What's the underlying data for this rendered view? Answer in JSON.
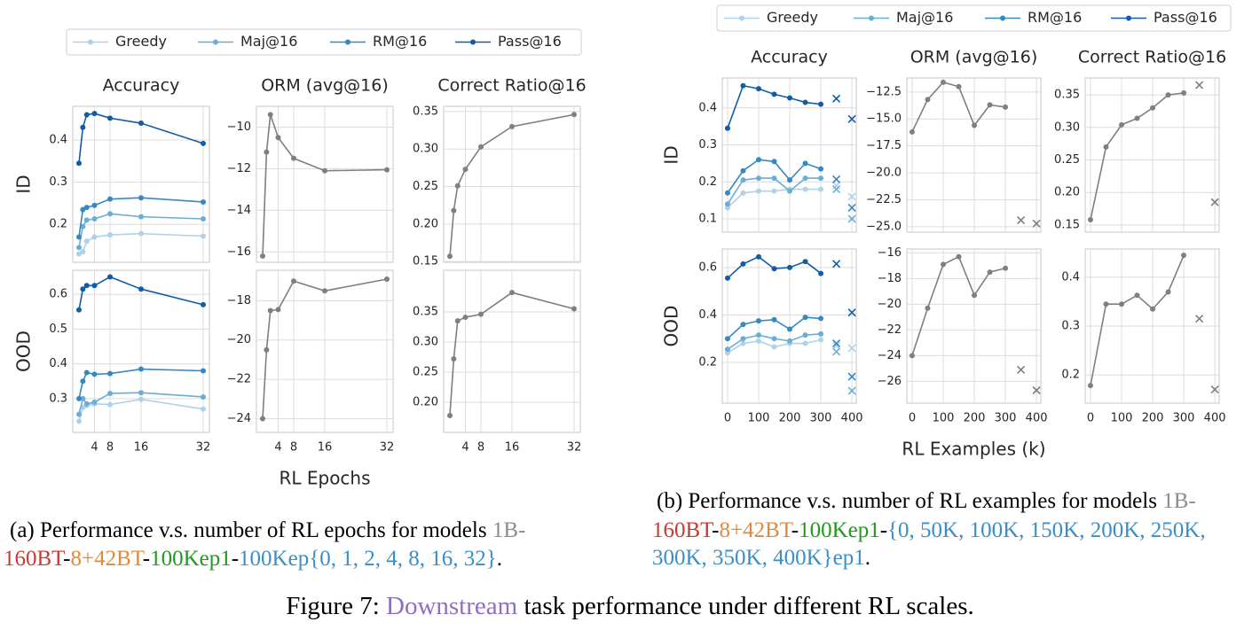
{
  "chart_data": [
    {
      "type": "line",
      "title": "Accuracy",
      "ylabel": "ID",
      "legend": "top",
      "x": [
        0,
        1,
        2,
        4,
        8,
        16,
        32
      ],
      "xlim": [
        -1.6,
        33.6
      ],
      "xticks": [
        4,
        8,
        16,
        32
      ],
      "xtick_labels": false,
      "ylim": [
        0.11,
        0.48
      ],
      "yticks": [
        0.2,
        0.3,
        0.4
      ],
      "grid": true,
      "series": [
        {
          "name": "Greedy",
          "color": "#b0d2e8",
          "values": [
            0.13,
            0.135,
            0.16,
            0.17,
            0.175,
            0.178,
            0.172
          ]
        },
        {
          "name": "Maj@16",
          "color": "#6aaed6",
          "values": [
            0.145,
            0.195,
            0.21,
            0.213,
            0.225,
            0.218,
            0.213
          ]
        },
        {
          "name": "RM@16",
          "color": "#3787c0",
          "values": [
            0.17,
            0.235,
            0.24,
            0.245,
            0.26,
            0.263,
            0.253
          ]
        },
        {
          "name": "Pass@16",
          "color": "#125ca4",
          "values": [
            0.345,
            0.43,
            0.46,
            0.463,
            0.452,
            0.44,
            0.392
          ]
        }
      ]
    },
    {
      "type": "line",
      "title": "ORM (avg@16)",
      "x": [
        0,
        1,
        2,
        4,
        8,
        16,
        32
      ],
      "xlim": [
        -1.6,
        33.6
      ],
      "xticks": [
        4,
        8,
        16,
        32
      ],
      "xtick_labels": false,
      "ylim": [
        -16.5,
        -9.0
      ],
      "yticks": [
        {
          "value": -16,
          "label": "−16"
        },
        {
          "value": -14,
          "label": "−14"
        },
        {
          "value": -12,
          "label": "−12"
        },
        {
          "value": -10,
          "label": "−10"
        }
      ],
      "grid": true,
      "series": [
        {
          "color": "#7f7f7f",
          "values": [
            -16.2,
            -11.2,
            -9.4,
            -10.5,
            -11.5,
            -12.1,
            -12.05
          ]
        }
      ]
    },
    {
      "type": "line",
      "title": "Correct Ratio@16",
      "x": [
        0,
        1,
        2,
        4,
        8,
        16,
        32
      ],
      "xlim": [
        -1.6,
        33.6
      ],
      "xticks": [
        4,
        8,
        16,
        32
      ],
      "xtick_labels": false,
      "ylim": [
        0.149,
        0.357
      ],
      "yticks": [
        0.15,
        {
          "value": 0.2,
          "label": "0.20"
        },
        0.25,
        {
          "value": 0.3,
          "label": "0.30"
        },
        0.35
      ],
      "grid": true,
      "series": [
        {
          "color": "#7f7f7f",
          "values": [
            0.157,
            0.218,
            0.251,
            0.273,
            0.303,
            0.33,
            0.346
          ]
        }
      ]
    },
    {
      "type": "line",
      "ylabel": "OOD",
      "x": [
        0,
        1,
        2,
        4,
        8,
        16,
        32
      ],
      "xlim": [
        -1.6,
        33.6
      ],
      "xticks": [
        4,
        8,
        16,
        32
      ],
      "xtick_labels": true,
      "ylim": [
        0.203,
        0.669
      ],
      "yticks": [
        0.3,
        0.4,
        0.5,
        0.6
      ],
      "grid": true,
      "series": [
        {
          "color": "#b0d2e8",
          "values": [
            0.235,
            0.275,
            0.28,
            0.285,
            0.283,
            0.298,
            0.27
          ]
        },
        {
          "color": "#6aaed6",
          "values": [
            0.255,
            0.3,
            0.285,
            0.29,
            0.315,
            0.317,
            0.305
          ]
        },
        {
          "color": "#3787c0",
          "values": [
            0.3,
            0.35,
            0.375,
            0.37,
            0.372,
            0.385,
            0.38
          ]
        },
        {
          "color": "#125ca4",
          "values": [
            0.555,
            0.615,
            0.625,
            0.625,
            0.65,
            0.615,
            0.57
          ]
        }
      ]
    },
    {
      "type": "line",
      "xlabel": "RL Epochs",
      "x": [
        0,
        1,
        2,
        4,
        8,
        16,
        32
      ],
      "xlim": [
        -1.6,
        33.6
      ],
      "xticks": [
        4,
        8,
        16,
        32
      ],
      "xtick_labels": true,
      "ylim": [
        -24.7,
        -16.45
      ],
      "yticks": [
        {
          "value": -24,
          "label": "−24"
        },
        {
          "value": -22,
          "label": "−22"
        },
        {
          "value": -20,
          "label": "−20"
        },
        {
          "value": -18,
          "label": "−18"
        }
      ],
      "grid": true,
      "series": [
        {
          "color": "#7f7f7f",
          "values": [
            -24,
            -20.5,
            -18.5,
            -18.45,
            -17.0,
            -17.5,
            -16.9
          ]
        }
      ]
    },
    {
      "type": "line",
      "x": [
        0,
        1,
        2,
        4,
        8,
        16,
        32
      ],
      "xlim": [
        -1.6,
        33.6
      ],
      "xticks": [
        4,
        8,
        16,
        32
      ],
      "xtick_labels": true,
      "ylim": [
        0.15,
        0.419
      ],
      "yticks": [
        {
          "value": 0.2,
          "label": "0.20"
        },
        0.25,
        {
          "value": 0.3,
          "label": "0.30"
        },
        0.35
      ],
      "grid": true,
      "series": [
        {
          "color": "#7f7f7f",
          "values": [
            0.178,
            0.272,
            0.335,
            0.341,
            0.346,
            0.382,
            0.355
          ]
        }
      ]
    },
    {
      "type": "line",
      "title": "Accuracy",
      "ylabel": "ID",
      "legend": "top",
      "x": [
        0,
        50,
        100,
        150,
        200,
        250,
        300
      ],
      "cross_x": [
        350,
        400
      ],
      "xlim": [
        -17,
        414
      ],
      "xticks": [
        0,
        100,
        200,
        300,
        400
      ],
      "xtick_labels": false,
      "ylim": [
        0.064,
        0.481
      ],
      "yticks": [
        0.1,
        0.2,
        0.3,
        0.4
      ],
      "grid": true,
      "series": [
        {
          "name": "Greedy",
          "color": "#b0d2e8",
          "values": [
            0.13,
            0.17,
            0.175,
            0.175,
            0.18,
            0.18,
            0.18
          ],
          "cross_values": [
            0.19,
            0.16
          ]
        },
        {
          "name": "Maj@16",
          "color": "#6aaed6",
          "values": [
            0.14,
            0.205,
            0.21,
            0.21,
            0.175,
            0.21,
            0.21
          ],
          "cross_values": [
            0.18,
            0.1
          ]
        },
        {
          "name": "RM@16",
          "color": "#3787c0",
          "values": [
            0.17,
            0.23,
            0.26,
            0.255,
            0.205,
            0.25,
            0.235
          ],
          "cross_values": [
            0.207,
            0.13
          ]
        },
        {
          "name": "Pass@16",
          "color": "#125ca4",
          "values": [
            0.345,
            0.46,
            0.452,
            0.437,
            0.427,
            0.415,
            0.41
          ],
          "cross_values": [
            0.425,
            0.37
          ]
        }
      ]
    },
    {
      "type": "line",
      "title": "ORM (avg@16)",
      "x": [
        0,
        50,
        100,
        150,
        200,
        250,
        300
      ],
      "cross_x": [
        350,
        400
      ],
      "xlim": [
        -17,
        414
      ],
      "xticks": [
        0,
        100,
        200,
        300,
        400
      ],
      "xtick_labels": false,
      "ylim": [
        -25.5,
        -11.2
      ],
      "yticks": [
        {
          "value": -25,
          "label": "−25.0"
        },
        {
          "value": -22.5,
          "label": "−22.5"
        },
        {
          "value": -20,
          "label": "−20.0"
        },
        {
          "value": -17.5,
          "label": "−17.5"
        },
        {
          "value": -15,
          "label": "−15.0"
        },
        {
          "value": -12.5,
          "label": "−12.5"
        }
      ],
      "grid": true,
      "series": [
        {
          "color": "#7f7f7f",
          "values": [
            -16.2,
            -13.2,
            -11.6,
            -12.0,
            -15.6,
            -13.7,
            -13.9
          ],
          "cross_values": [
            -24.4,
            -24.7
          ]
        }
      ]
    },
    {
      "type": "line",
      "title": "Correct Ratio@16",
      "x": [
        0,
        50,
        100,
        150,
        200,
        250,
        300
      ],
      "cross_x": [
        350,
        400
      ],
      "xlim": [
        -17,
        414
      ],
      "xticks": [
        0,
        100,
        200,
        300,
        400
      ],
      "xtick_labels": false,
      "ylim": [
        0.139,
        0.376
      ],
      "yticks": [
        0.15,
        {
          "value": 0.2,
          "label": "0.20"
        },
        0.25,
        {
          "value": 0.3,
          "label": "0.30"
        },
        0.35
      ],
      "grid": true,
      "series": [
        {
          "color": "#7f7f7f",
          "values": [
            0.158,
            0.27,
            0.304,
            0.314,
            0.33,
            0.35,
            0.353
          ],
          "cross_values": [
            0.365,
            0.185
          ]
        }
      ]
    },
    {
      "type": "line",
      "ylabel": "OOD",
      "x": [
        0,
        50,
        100,
        150,
        200,
        250,
        300
      ],
      "cross_x": [
        350,
        400
      ],
      "xlim": [
        -17,
        414
      ],
      "xticks": [
        0,
        100,
        200,
        300,
        400
      ],
      "xtick_labels": true,
      "ylim": [
        0.028,
        0.678
      ],
      "yticks": [
        0.2,
        0.4,
        0.6
      ],
      "grid": true,
      "series": [
        {
          "color": "#b0d2e8",
          "values": [
            0.24,
            0.28,
            0.29,
            0.265,
            0.28,
            0.28,
            0.295
          ],
          "cross_values": [
            0.27,
            0.26
          ]
        },
        {
          "color": "#6aaed6",
          "values": [
            0.255,
            0.3,
            0.315,
            0.3,
            0.29,
            0.315,
            0.32
          ],
          "cross_values": [
            0.245,
            0.08
          ]
        },
        {
          "color": "#3787c0",
          "values": [
            0.3,
            0.36,
            0.375,
            0.38,
            0.34,
            0.39,
            0.385
          ],
          "cross_values": [
            0.28,
            0.14
          ]
        },
        {
          "color": "#125ca4",
          "values": [
            0.555,
            0.615,
            0.645,
            0.595,
            0.6,
            0.625,
            0.575
          ],
          "cross_values": [
            0.615,
            0.41
          ]
        }
      ]
    },
    {
      "type": "line",
      "xlabel": "RL Examples (k)",
      "x": [
        0,
        50,
        100,
        150,
        200,
        250,
        300
      ],
      "cross_x": [
        350,
        400
      ],
      "xlim": [
        -17,
        414
      ],
      "xticks": [
        0,
        100,
        200,
        300,
        400
      ],
      "xtick_labels": true,
      "ylim": [
        -27.7,
        -15.7
      ],
      "yticks": [
        {
          "value": -26,
          "label": "−26"
        },
        {
          "value": -24,
          "label": "−24"
        },
        {
          "value": -22,
          "label": "−22"
        },
        {
          "value": -20,
          "label": "−20"
        },
        {
          "value": -18,
          "label": "−18"
        },
        {
          "value": -16,
          "label": "−16"
        }
      ],
      "grid": true,
      "series": [
        {
          "color": "#7f7f7f",
          "values": [
            -24,
            -20.3,
            -16.9,
            -16.3,
            -19.3,
            -17.5,
            -17.2
          ],
          "cross_values": [
            -25.1,
            -26.7
          ]
        }
      ]
    },
    {
      "type": "line",
      "x": [
        0,
        50,
        100,
        150,
        200,
        250,
        300
      ],
      "cross_x": [
        350,
        400
      ],
      "xlim": [
        -17,
        414
      ],
      "xticks": [
        0,
        100,
        200,
        300,
        400
      ],
      "xtick_labels": true,
      "ylim": [
        0.142,
        0.458
      ],
      "yticks": [
        0.2,
        0.3,
        0.4
      ],
      "grid": true,
      "series": [
        {
          "color": "#7f7f7f",
          "values": [
            0.178,
            0.345,
            0.345,
            0.363,
            0.335,
            0.37,
            0.445
          ],
          "cross_values": [
            0.315,
            0.17
          ]
        }
      ]
    }
  ],
  "caption_a": [
    [
      {
        "text": "(a) Performance v.s. number of RL epochs for models ",
        "color": "#000000"
      },
      {
        "text": "1B-",
        "color": "#8c8c8c"
      }
    ],
    [
      {
        "text": "160BT",
        "color": "#c83a32"
      },
      {
        "text": "-",
        "color": "#000000"
      },
      {
        "text": "8+42BT",
        "color": "#e08a3c"
      },
      {
        "text": "-",
        "color": "#000000"
      },
      {
        "text": "100Kep1",
        "color": "#1f9a1f"
      },
      {
        "text": "-",
        "color": "#000000"
      },
      {
        "text": "100Kep{0, 1, 2, 4, 8, 16, 32}",
        "color": "#3a8fc8"
      },
      {
        "text": ".",
        "color": "#000000"
      }
    ]
  ],
  "caption_b": [
    [
      {
        "text": "(b) Performance v.s. number of RL examples for models ",
        "color": "#000000"
      },
      {
        "text": "1B-",
        "color": "#8c8c8c"
      }
    ],
    [
      {
        "text": "160BT",
        "color": "#c83a32"
      },
      {
        "text": "-",
        "color": "#000000"
      },
      {
        "text": "8+42BT",
        "color": "#e08a3c"
      },
      {
        "text": "-",
        "color": "#000000"
      },
      {
        "text": "100Kep1",
        "color": "#1f9a1f"
      },
      {
        "text": "-",
        "color": "#000000"
      },
      {
        "text": "{0, 50K, 100K, 150K, 200K, 250K,",
        "color": "#3a8fc8"
      }
    ],
    [
      {
        "text": "300K, 350K, 400K}ep1",
        "color": "#3a8fc8"
      },
      {
        "text": ".",
        "color": "#000000"
      }
    ]
  ],
  "figure_caption": [
    {
      "text": "Figure 7: ",
      "color": "#000000"
    },
    {
      "text": "Downstream",
      "color": "#8e6fc0"
    },
    {
      "text": " task performance under different RL scales.",
      "color": "#000000"
    }
  ]
}
